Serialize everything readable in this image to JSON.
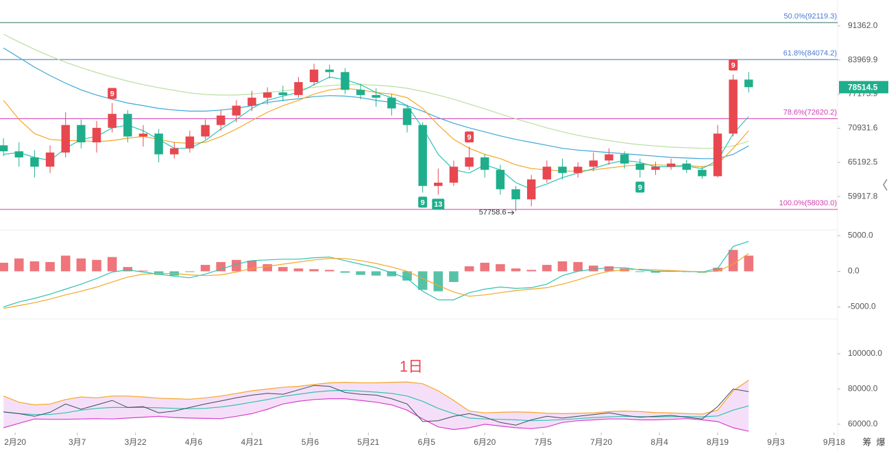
{
  "chart_data": {
    "type": "candlestick",
    "x": [
      4,
      8,
      12,
      16,
      20,
      24,
      28,
      32,
      36,
      40,
      44,
      48,
      52,
      56,
      60,
      64,
      68,
      72,
      76,
      80,
      84,
      88,
      92,
      96,
      100,
      104,
      108,
      112,
      116,
      120,
      124,
      128,
      132,
      136,
      140,
      144,
      148,
      152,
      156,
      160,
      164,
      168,
      172,
      176,
      180,
      184,
      188,
      192,
      196
    ],
    "xlim": [
      3.1,
      218.9
    ],
    "xticks": [
      {
        "value": 7,
        "label": "2月20"
      },
      {
        "value": 23,
        "label": "3月7"
      },
      {
        "value": 38,
        "label": "3月22"
      },
      {
        "value": 53,
        "label": "4月6"
      },
      {
        "value": 68,
        "label": "4月21"
      },
      {
        "value": 83,
        "label": "5月6"
      },
      {
        "value": 98,
        "label": "5月21"
      },
      {
        "value": 113,
        "label": "6月5"
      },
      {
        "value": 128,
        "label": "6月20"
      },
      {
        "value": 143,
        "label": "7月5"
      },
      {
        "value": 158,
        "label": "7月20"
      },
      {
        "value": 173,
        "label": "8月4"
      },
      {
        "value": 188,
        "label": "8月19"
      },
      {
        "value": 203,
        "label": "9月3"
      },
      {
        "value": 218,
        "label": "9月18"
      }
    ],
    "ylim": [
      55254,
      97400
    ],
    "log_scale": true,
    "yticks": [
      {
        "value": 91362,
        "label": "91362.0"
      },
      {
        "value": 83969.9,
        "label": "83969.9"
      },
      {
        "value": 77175.9,
        "label": "77175.9"
      },
      {
        "value": 70931.6,
        "label": "70931.6"
      },
      {
        "value": 65192.5,
        "label": "65192.5"
      },
      {
        "value": 59917.8,
        "label": "59917.8"
      }
    ],
    "open": [
      68000,
      67000,
      66000,
      64500,
      66800,
      71500,
      68500,
      71000,
      73500,
      69500,
      70000,
      66500,
      67500,
      69500,
      71500,
      73200,
      75000,
      76500,
      77500,
      77000,
      79500,
      82000,
      81500,
      78000,
      77000,
      76500,
      74500,
      71500,
      61500,
      62000,
      64500,
      66000,
      64000,
      61000,
      59500,
      62500,
      64500,
      63500,
      64500,
      65500,
      66500,
      65000,
      64000,
      64500,
      65000,
      64000,
      63000,
      70000,
      80000
    ],
    "high": [
      69200,
      68500,
      67200,
      68000,
      73800,
      72500,
      72200,
      75500,
      74200,
      71500,
      70800,
      68500,
      70500,
      72500,
      74200,
      76000,
      77800,
      78500,
      78800,
      80500,
      83200,
      83000,
      82300,
      79200,
      78300,
      77200,
      75200,
      72000,
      64200,
      65500,
      67800,
      66500,
      64800,
      61500,
      63200,
      65500,
      65800,
      65200,
      66800,
      67500,
      67000,
      65800,
      65300,
      65800,
      65600,
      64500,
      71500,
      81000,
      81500
    ],
    "low": [
      66200,
      64500,
      62800,
      63500,
      66000,
      67500,
      66800,
      70200,
      68500,
      67800,
      65200,
      65800,
      66800,
      69000,
      70500,
      72000,
      74000,
      75200,
      75800,
      76500,
      78800,
      80200,
      77200,
      76200,
      74800,
      73200,
      70200,
      60500,
      60200,
      61500,
      64000,
      62800,
      60200,
      57758.6,
      58500,
      62000,
      62500,
      62800,
      63800,
      64800,
      64200,
      62800,
      63200,
      64000,
      63500,
      62600,
      62800,
      69500,
      77500
    ],
    "close": [
      67000,
      66000,
      64500,
      66800,
      71500,
      68500,
      71000,
      73500,
      69500,
      70000,
      66500,
      67500,
      69500,
      71500,
      73200,
      75000,
      76500,
      77500,
      77000,
      79500,
      82000,
      81500,
      78000,
      77000,
      76500,
      74500,
      71500,
      61500,
      62000,
      64500,
      66000,
      64000,
      61000,
      59500,
      62500,
      64500,
      63500,
      64500,
      65500,
      66500,
      65000,
      64000,
      64500,
      65000,
      64000,
      63000,
      70000,
      80000,
      78514.5
    ],
    "up_color": "#e8474f",
    "down_color": "#1fae8b",
    "series": [
      {
        "color": "#b9dea0",
        "values": [
          89500,
          87800,
          86200,
          84800,
          83500,
          82400,
          81400,
          80500,
          79700,
          79000,
          78400,
          77900,
          77400,
          77100,
          77000,
          77000,
          77200,
          77500,
          77800,
          78100,
          78500,
          78800,
          79000,
          79000,
          78900,
          78700,
          78300,
          77700,
          77000,
          76200,
          75300,
          74400,
          73500,
          72600,
          71800,
          71000,
          70300,
          69700,
          69200,
          68800,
          68400,
          68100,
          67900,
          67700,
          67600,
          67500,
          67500,
          67900,
          68700
        ]
      },
      {
        "color": "#3aa6d8",
        "values": [
          86500,
          84500,
          82500,
          80800,
          79300,
          78000,
          77000,
          76200,
          75500,
          75000,
          74500,
          74200,
          74000,
          74000,
          74200,
          74500,
          75000,
          75600,
          76000,
          76300,
          76700,
          76900,
          76800,
          76500,
          76000,
          75600,
          75000,
          74000,
          72800,
          71800,
          71000,
          70300,
          69600,
          69000,
          68500,
          68000,
          67500,
          67200,
          67000,
          66800,
          66600,
          66400,
          66200,
          66000,
          65900,
          65800,
          65800,
          66500,
          67900
        ]
      },
      {
        "color": "#f5a623",
        "values": [
          76000,
          72500,
          70000,
          69000,
          68800,
          68800,
          68600,
          68800,
          69200,
          69500,
          69000,
          68500,
          68300,
          68500,
          69500,
          70800,
          72300,
          73800,
          75000,
          76000,
          77200,
          78000,
          78300,
          78000,
          77500,
          77200,
          76500,
          74500,
          71500,
          69000,
          67500,
          66500,
          65800,
          64800,
          64200,
          64000,
          63800,
          63800,
          64000,
          64300,
          64600,
          64800,
          64800,
          64700,
          64700,
          64500,
          64900,
          67500,
          70500
        ]
      },
      {
        "color": "#2cc3b0",
        "values": [
          66500,
          66800,
          66000,
          65500,
          67500,
          69000,
          69500,
          71000,
          71500,
          70500,
          69000,
          67500,
          67500,
          68800,
          70800,
          72500,
          74500,
          76000,
          76800,
          77500,
          79000,
          80500,
          80000,
          79000,
          77500,
          76500,
          75000,
          71000,
          66500,
          64000,
          63500,
          64800,
          64000,
          62000,
          61000,
          61800,
          62800,
          63500,
          64200,
          65000,
          65500,
          65200,
          64500,
          64500,
          64600,
          64200,
          65500,
          70000,
          73000
        ]
      }
    ],
    "fib_levels": [
      {
        "value": 92119.3,
        "label": "50.0%(92119.3)",
        "color": "#4b7bd4",
        "line_color": "#2e6e5e"
      },
      {
        "value": 84074.2,
        "label": "61.8%(84074.2)",
        "color": "#4b7bd4",
        "line_color": "#3b6fb0"
      },
      {
        "value": 72620.2,
        "label": "78.6%(72620.2)",
        "color": "#d23cb0",
        "line_color": "#d23cb0"
      },
      {
        "value": 58030.0,
        "label": "100.0%(58030.0)",
        "color": "#d23cb0",
        "line_color": "#d23cb0"
      }
    ],
    "td_markers": [
      {
        "x": 32,
        "label": 9,
        "position": "above"
      },
      {
        "x": 124,
        "label": 9,
        "position": "above"
      },
      {
        "x": 192,
        "label": 9,
        "position": "above"
      },
      {
        "x": 112,
        "label": 9,
        "position": "below"
      },
      {
        "x": 116,
        "label": 13,
        "position": "below"
      },
      {
        "x": 168,
        "label": 9,
        "position": "below"
      }
    ],
    "macd": {
      "ylim": [
        -6100,
        5800
      ],
      "yticks": [
        {
          "value": 5000,
          "label": "5000.0"
        },
        {
          "value": 0,
          "label": "0.0"
        },
        {
          "value": -5000,
          "label": "-5000.0"
        }
      ],
      "histogram": [
        1200,
        1800,
        1400,
        1300,
        2200,
        1800,
        1600,
        2000,
        600,
        100,
        -500,
        -600,
        -100,
        900,
        1300,
        1600,
        1500,
        1000,
        600,
        400,
        300,
        200,
        -200,
        -500,
        -600,
        -700,
        -1300,
        -2600,
        -2800,
        -1500,
        700,
        1200,
        1000,
        400,
        200,
        900,
        1400,
        1300,
        800,
        700,
        400,
        -100,
        -200,
        100,
        -100,
        -200,
        500,
        3000,
        2200
      ],
      "series": [
        {
          "color": "#2cc3b0",
          "values": [
            -5000,
            -4300,
            -3800,
            -3200,
            -2500,
            -1800,
            -1000,
            -100,
            200,
            -100,
            -400,
            -700,
            -900,
            -400,
            300,
            1000,
            1500,
            1600,
            1700,
            1700,
            1900,
            2000,
            1500,
            1000,
            500,
            -200,
            -1000,
            -2800,
            -4000,
            -4000,
            -3000,
            -2500,
            -2200,
            -2400,
            -2300,
            -1800,
            -600,
            0,
            300,
            500,
            500,
            200,
            0,
            0,
            0,
            -100,
            400,
            3500,
            4200
          ]
        },
        {
          "color": "#f5a623",
          "values": [
            -5200,
            -4800,
            -4400,
            -3900,
            -3300,
            -2800,
            -2200,
            -1500,
            -800,
            -400,
            -300,
            -300,
            -500,
            -600,
            -500,
            -100,
            400,
            700,
            1000,
            1300,
            1600,
            1800,
            1800,
            1500,
            1100,
            600,
            0,
            -1000,
            -2000,
            -2900,
            -3500,
            -3300,
            -3000,
            -2700,
            -2500,
            -2300,
            -1800,
            -1200,
            -500,
            0,
            200,
            300,
            200,
            100,
            0,
            -50,
            0,
            1000,
            2500
          ]
        }
      ]
    },
    "bands": {
      "label": "1日",
      "ylim": [
        55300,
        118200
      ],
      "yticks": [
        {
          "value": 100000,
          "label": "100000.0"
        },
        {
          "value": 80000,
          "label": "80000.0"
        },
        {
          "value": 60000,
          "label": "60000.0"
        }
      ],
      "fill": "#f5dff8",
      "price_color": "#3b4a5c",
      "series": [
        {
          "color": "#f5a623",
          "values": [
            76000,
            72500,
            71000,
            71500,
            74000,
            75500,
            75000,
            76000,
            76000,
            75500,
            74800,
            74500,
            74200,
            75000,
            76000,
            77500,
            79000,
            80000,
            81000,
            81500,
            82500,
            83500,
            83800,
            83500,
            83500,
            83800,
            84000,
            83000,
            79000,
            73500,
            67500,
            66500,
            66800,
            67000,
            66800,
            66200,
            66000,
            66200,
            66500,
            67200,
            67500,
            67200,
            66600,
            66400,
            66000,
            65800,
            68000,
            79000,
            85000
          ]
        },
        {
          "color": "#2cc3b0",
          "values": [
            67000,
            66000,
            65500,
            65500,
            66500,
            68000,
            69000,
            69500,
            69500,
            69500,
            69300,
            69000,
            68800,
            69000,
            69800,
            71000,
            72500,
            74000,
            75800,
            77000,
            78200,
            79000,
            79200,
            78800,
            78200,
            77500,
            76000,
            73000,
            69000,
            66000,
            63500,
            63000,
            62800,
            62500,
            62000,
            62200,
            62600,
            63200,
            63800,
            64200,
            64500,
            64300,
            64200,
            64300,
            64400,
            64200,
            64700,
            68000,
            70500
          ]
        },
        {
          "color": "#d63fd0",
          "values": [
            58000,
            60500,
            63000,
            62800,
            62800,
            63000,
            63200,
            63000,
            63500,
            64000,
            64500,
            63800,
            63500,
            63300,
            63200,
            64500,
            66000,
            68500,
            71500,
            73000,
            74000,
            74500,
            74500,
            73500,
            72500,
            71000,
            68000,
            63000,
            58500,
            57000,
            58000,
            60000,
            59000,
            58000,
            57500,
            58500,
            61000,
            62000,
            62500,
            63000,
            63000,
            62500,
            62500,
            62800,
            63200,
            62500,
            61500,
            58000,
            56000
          ]
        }
      ]
    },
    "toolbar": [
      "筹",
      "爆"
    ]
  }
}
